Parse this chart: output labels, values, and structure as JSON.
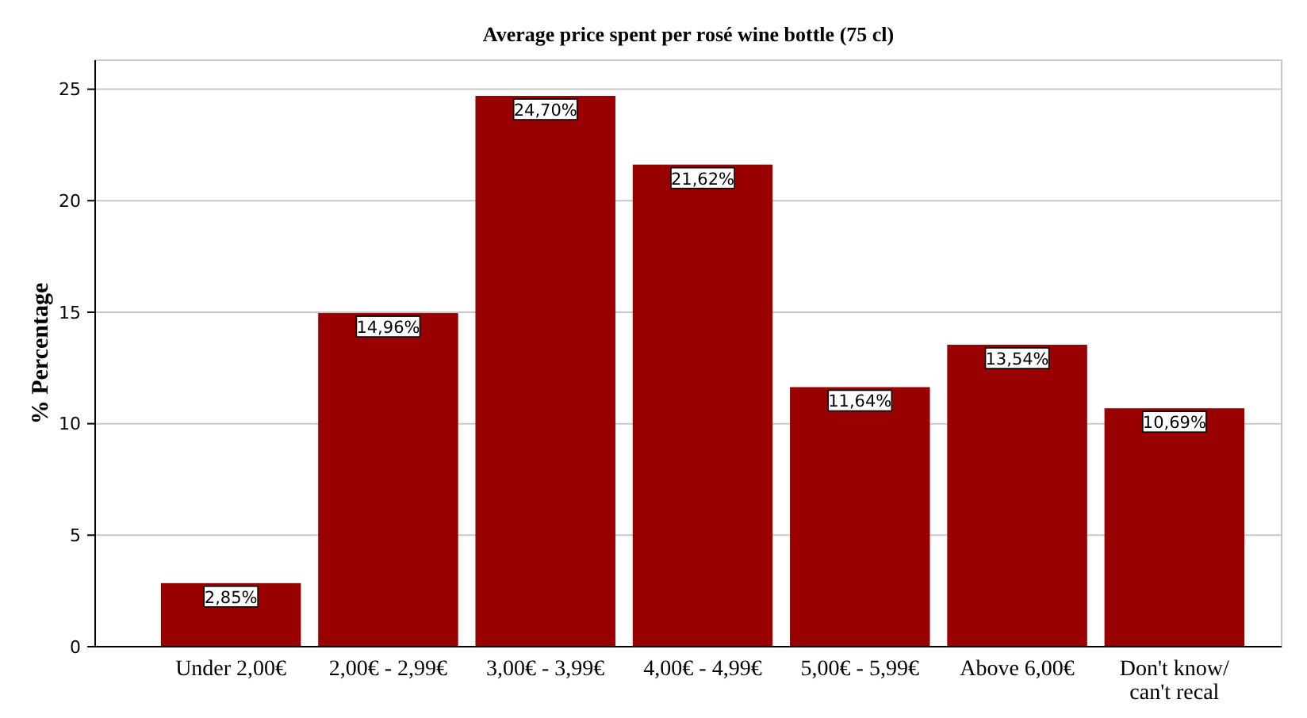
{
  "chart_data": {
    "type": "bar",
    "title": "Average price spent per rosé wine bottle (75 cl)",
    "ylabel": "% Percentage",
    "categories": [
      "Under 2,00€",
      "2,00€ - 2,99€",
      "3,00€ - 3,99€",
      "4,00€ - 4,99€",
      "5,00€ - 5,99€",
      "Above 6,00€",
      "Don't know/ can't recal"
    ],
    "values": [
      2.85,
      14.96,
      24.7,
      21.62,
      11.64,
      13.54,
      10.69
    ],
    "value_labels": [
      "2,85%",
      "14,96%",
      "24,70%",
      "21,62%",
      "11,64%",
      "13,54%",
      "10,69%"
    ],
    "color": "#990000",
    "ylim": [
      0,
      26.3
    ],
    "yticks": [
      0,
      5,
      10,
      15,
      20,
      25
    ],
    "grid": "y"
  }
}
